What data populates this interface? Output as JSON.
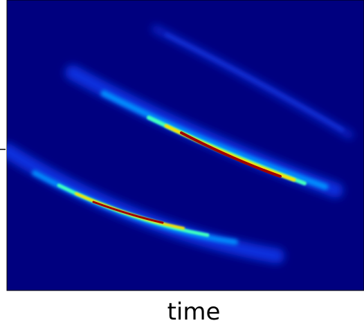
{
  "chart_data": {
    "type": "spectrogram",
    "xlabel": "time"
  }
}
